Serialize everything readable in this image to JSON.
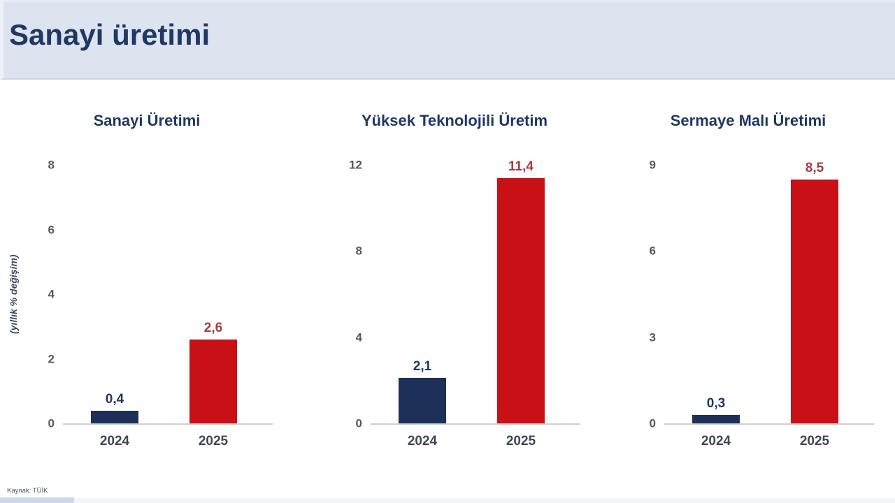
{
  "header": {
    "title": "Sanayi üretimi"
  },
  "footer": {
    "source": "Kaynak: TÜİK"
  },
  "y_axis_label": "(yıllık % değişim)",
  "colors": {
    "header_bg": "#dde4ef",
    "header_title": "#1f3864",
    "navy_bar": "#1c3059",
    "red_bar": "#c81016",
    "navy_value_label": "#1f3864",
    "red_value_label": "#a63c40",
    "tick_label": "#595959",
    "year_label": "#3f4757",
    "axis_line": "#cfcfcf",
    "footer_strip": "#ccd9ec"
  },
  "chart_data": [
    {
      "type": "bar",
      "title": "Sanayi Üretimi",
      "categories": [
        "2024",
        "2025"
      ],
      "values": [
        0.4,
        2.6
      ],
      "value_labels": [
        "0,4",
        "2,6"
      ],
      "yticks": [
        0,
        2,
        4,
        6,
        8
      ],
      "ylim": [
        0,
        8
      ],
      "ylabel": "(yıllık % değişim)",
      "grid": false,
      "legend": false,
      "bar_colors": [
        "#1c3059",
        "#c81016"
      ]
    },
    {
      "type": "bar",
      "title": "Yüksek Teknolojili Üretim",
      "categories": [
        "2024",
        "2025"
      ],
      "values": [
        2.1,
        11.4
      ],
      "value_labels": [
        "2,1",
        "11,4"
      ],
      "yticks": [
        0,
        4,
        8,
        12
      ],
      "ylim": [
        0,
        12
      ],
      "ylabel": "",
      "grid": false,
      "legend": false,
      "bar_colors": [
        "#1c3059",
        "#c81016"
      ]
    },
    {
      "type": "bar",
      "title": "Sermaye Malı Üretimi",
      "categories": [
        "2024",
        "2025"
      ],
      "values": [
        0.3,
        8.5
      ],
      "value_labels": [
        "0,3",
        "8,5"
      ],
      "yticks": [
        0,
        3,
        6,
        9
      ],
      "ylim": [
        0,
        9
      ],
      "ylabel": "",
      "grid": false,
      "legend": false,
      "bar_colors": [
        "#1c3059",
        "#c81016"
      ]
    }
  ]
}
